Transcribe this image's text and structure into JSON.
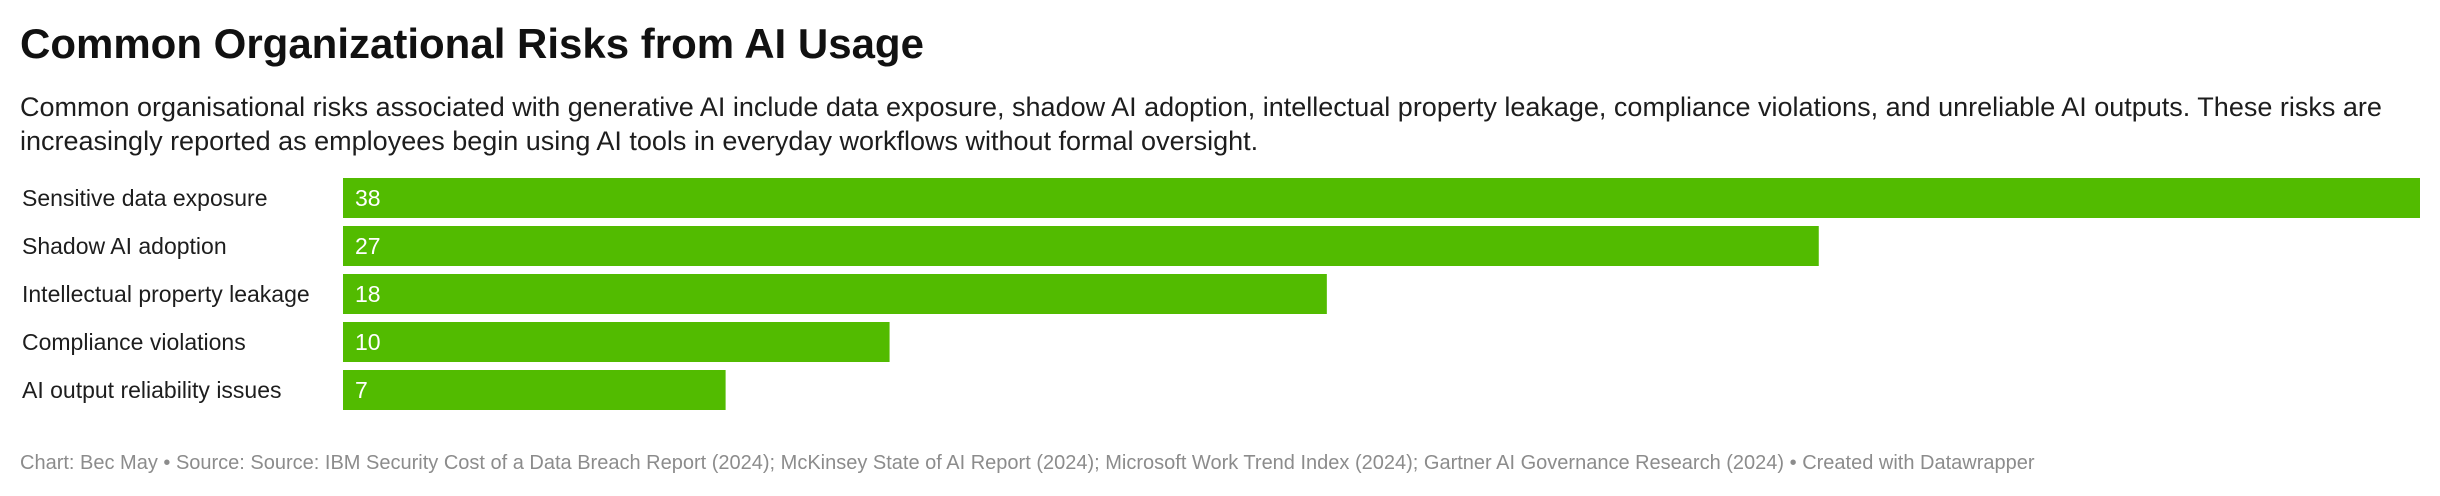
{
  "header": {
    "title": "Common Organizational Risks from AI Usage",
    "subtitle": "Common organisational risks associated with generative AI include data exposure, shadow AI adoption, intellectual property leakage, compliance violations, and unreliable AI outputs. These risks are increasingly reported as employees begin using AI tools in everyday workflows without formal oversight."
  },
  "chart_data": {
    "type": "bar",
    "orientation": "horizontal",
    "categories": [
      "Sensitive data exposure",
      "Shadow AI adoption",
      "Intellectual property leakage",
      "Compliance violations",
      "AI output reliability issues"
    ],
    "values": [
      38,
      27,
      18,
      10,
      7
    ],
    "xlim": [
      0,
      38
    ],
    "bar_color": "#52bb00",
    "value_label_color": "#ffffff",
    "grid": false,
    "legend": "none"
  },
  "footer": {
    "credit": "Chart: Bec May • Source: Source: IBM Security Cost of a Data Breach Report (2024); McKinsey State of AI Report (2024); Microsoft Work Trend Index (2024); Gartner AI Governance Research (2024) • Created with Datawrapper"
  }
}
